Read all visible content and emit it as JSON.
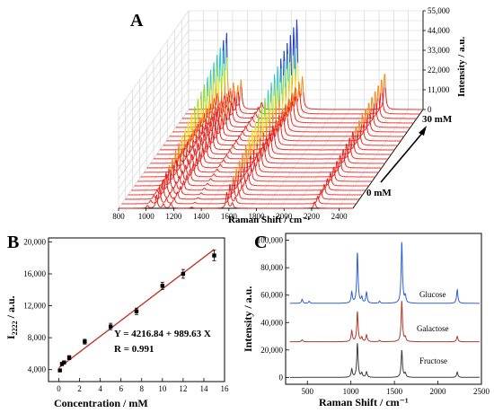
{
  "chart_data": [
    {
      "type": "line",
      "panel": "A",
      "xlabel": "Raman Shift / cm⁻¹",
      "zlabel": "Intensity / a.u.",
      "depth_labels": [
        "0 mM",
        "30 mM"
      ],
      "x_ticks": [
        800,
        1000,
        1200,
        1400,
        1600,
        1800,
        2000,
        2200,
        2400
      ],
      "xlim": [
        800,
        2500
      ],
      "z_ticks": [
        "0",
        "11,000",
        "22,000",
        "33,000",
        "44,000",
        "55,000"
      ],
      "zlim": [
        0,
        55000
      ],
      "series_count": 23,
      "peaks": [
        {
          "shift": 1010,
          "rel_height": 0.18
        },
        {
          "shift": 1075,
          "rel_height": 0.85
        },
        {
          "shift": 1125,
          "rel_height": 0.28
        },
        {
          "shift": 1180,
          "rel_height": 0.32
        },
        {
          "shift": 1330,
          "rel_height": 0.08
        },
        {
          "shift": 1585,
          "rel_height": 1.0
        },
        {
          "shift": 1625,
          "rel_height": 0.34
        },
        {
          "shift": 2222,
          "rel_height": 0.42
        }
      ]
    },
    {
      "type": "scatter",
      "panel": "B",
      "xlabel": "Concentration / mM",
      "ylabel": "I",
      "ylabel_sub": "2222",
      "ylabel_tail": " / a.u.",
      "x": [
        0.1,
        0.3,
        0.5,
        1.0,
        2.5,
        5.0,
        7.5,
        10.0,
        12.0,
        15.0
      ],
      "y": [
        3900,
        4700,
        4900,
        5500,
        7500,
        9400,
        11300,
        14500,
        16000,
        18300
      ],
      "yerr": [
        150,
        200,
        150,
        250,
        300,
        400,
        400,
        450,
        550,
        650
      ],
      "xlim": [
        -1,
        16
      ],
      "ylim": [
        2500,
        20500
      ],
      "x_ticks": [
        0,
        2,
        4,
        6,
        8,
        10,
        12,
        14,
        16
      ],
      "y_ticks": [
        4000,
        8000,
        12000,
        16000,
        20000
      ],
      "y_tick_labels": [
        "4,000",
        "8,000",
        "12,000",
        "16,000",
        "20,000"
      ],
      "fit": {
        "intercept": 4216.84,
        "slope": 989.63
      },
      "equation": "Y = 4216.84 + 989.63 X",
      "r_text": "R = 0.991"
    },
    {
      "type": "line",
      "panel": "C",
      "xlabel": "Raman Shift / cm⁻¹",
      "ylabel": "Intensity / a.u.",
      "xlim": [
        250,
        2500
      ],
      "ylim": [
        -5000,
        105000
      ],
      "x_ticks": [
        500,
        1000,
        1500,
        2000,
        2500
      ],
      "y_ticks": [
        0,
        20000,
        40000,
        60000,
        80000,
        100000
      ],
      "y_tick_labels": [
        "0",
        "20,000",
        "40,000",
        "60,000",
        "80,000",
        "100,000"
      ],
      "series": [
        {
          "name": "Glucose",
          "color": "#2f5fd8",
          "baseline": 54000,
          "peaks": [
            [
              440,
              3000
            ],
            [
              520,
              1500
            ],
            [
              1010,
              8000
            ],
            [
              1075,
              37000
            ],
            [
              1125,
              4000
            ],
            [
              1180,
              8000
            ],
            [
              1330,
              1500
            ],
            [
              1585,
              45000
            ],
            [
              1625,
              5000
            ],
            [
              2222,
              10000
            ]
          ]
        },
        {
          "name": "Galactose",
          "color": "#b23a2c",
          "baseline": 26000,
          "peaks": [
            [
              440,
              1500
            ],
            [
              1010,
              8000
            ],
            [
              1075,
              22000
            ],
            [
              1125,
              3000
            ],
            [
              1180,
              5000
            ],
            [
              1330,
              1000
            ],
            [
              1585,
              30000
            ],
            [
              1625,
              3000
            ],
            [
              2222,
              4000
            ]
          ]
        },
        {
          "name": "Fructose",
          "color": "#3d3d3d",
          "baseline": 0,
          "peaks": [
            [
              1010,
              6000
            ],
            [
              1075,
              25000
            ],
            [
              1125,
              3000
            ],
            [
              1180,
              4000
            ],
            [
              1585,
              20000
            ],
            [
              1625,
              3000
            ],
            [
              2222,
              4000
            ]
          ]
        }
      ]
    }
  ]
}
